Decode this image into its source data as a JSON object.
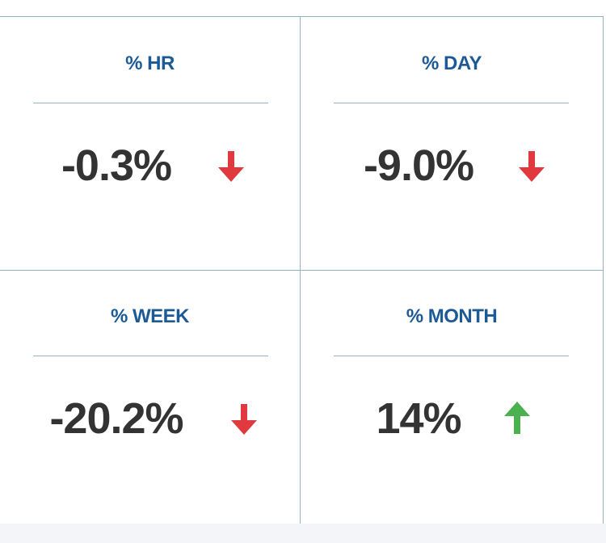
{
  "cards": [
    {
      "label": "% HR",
      "value": "-0.3%"
    },
    {
      "label": "% DAY",
      "value": "-9.0%"
    },
    {
      "label": "% WEEK",
      "value": "-20.2%"
    },
    {
      "label": "% MONTH",
      "value": "14%"
    }
  ]
}
